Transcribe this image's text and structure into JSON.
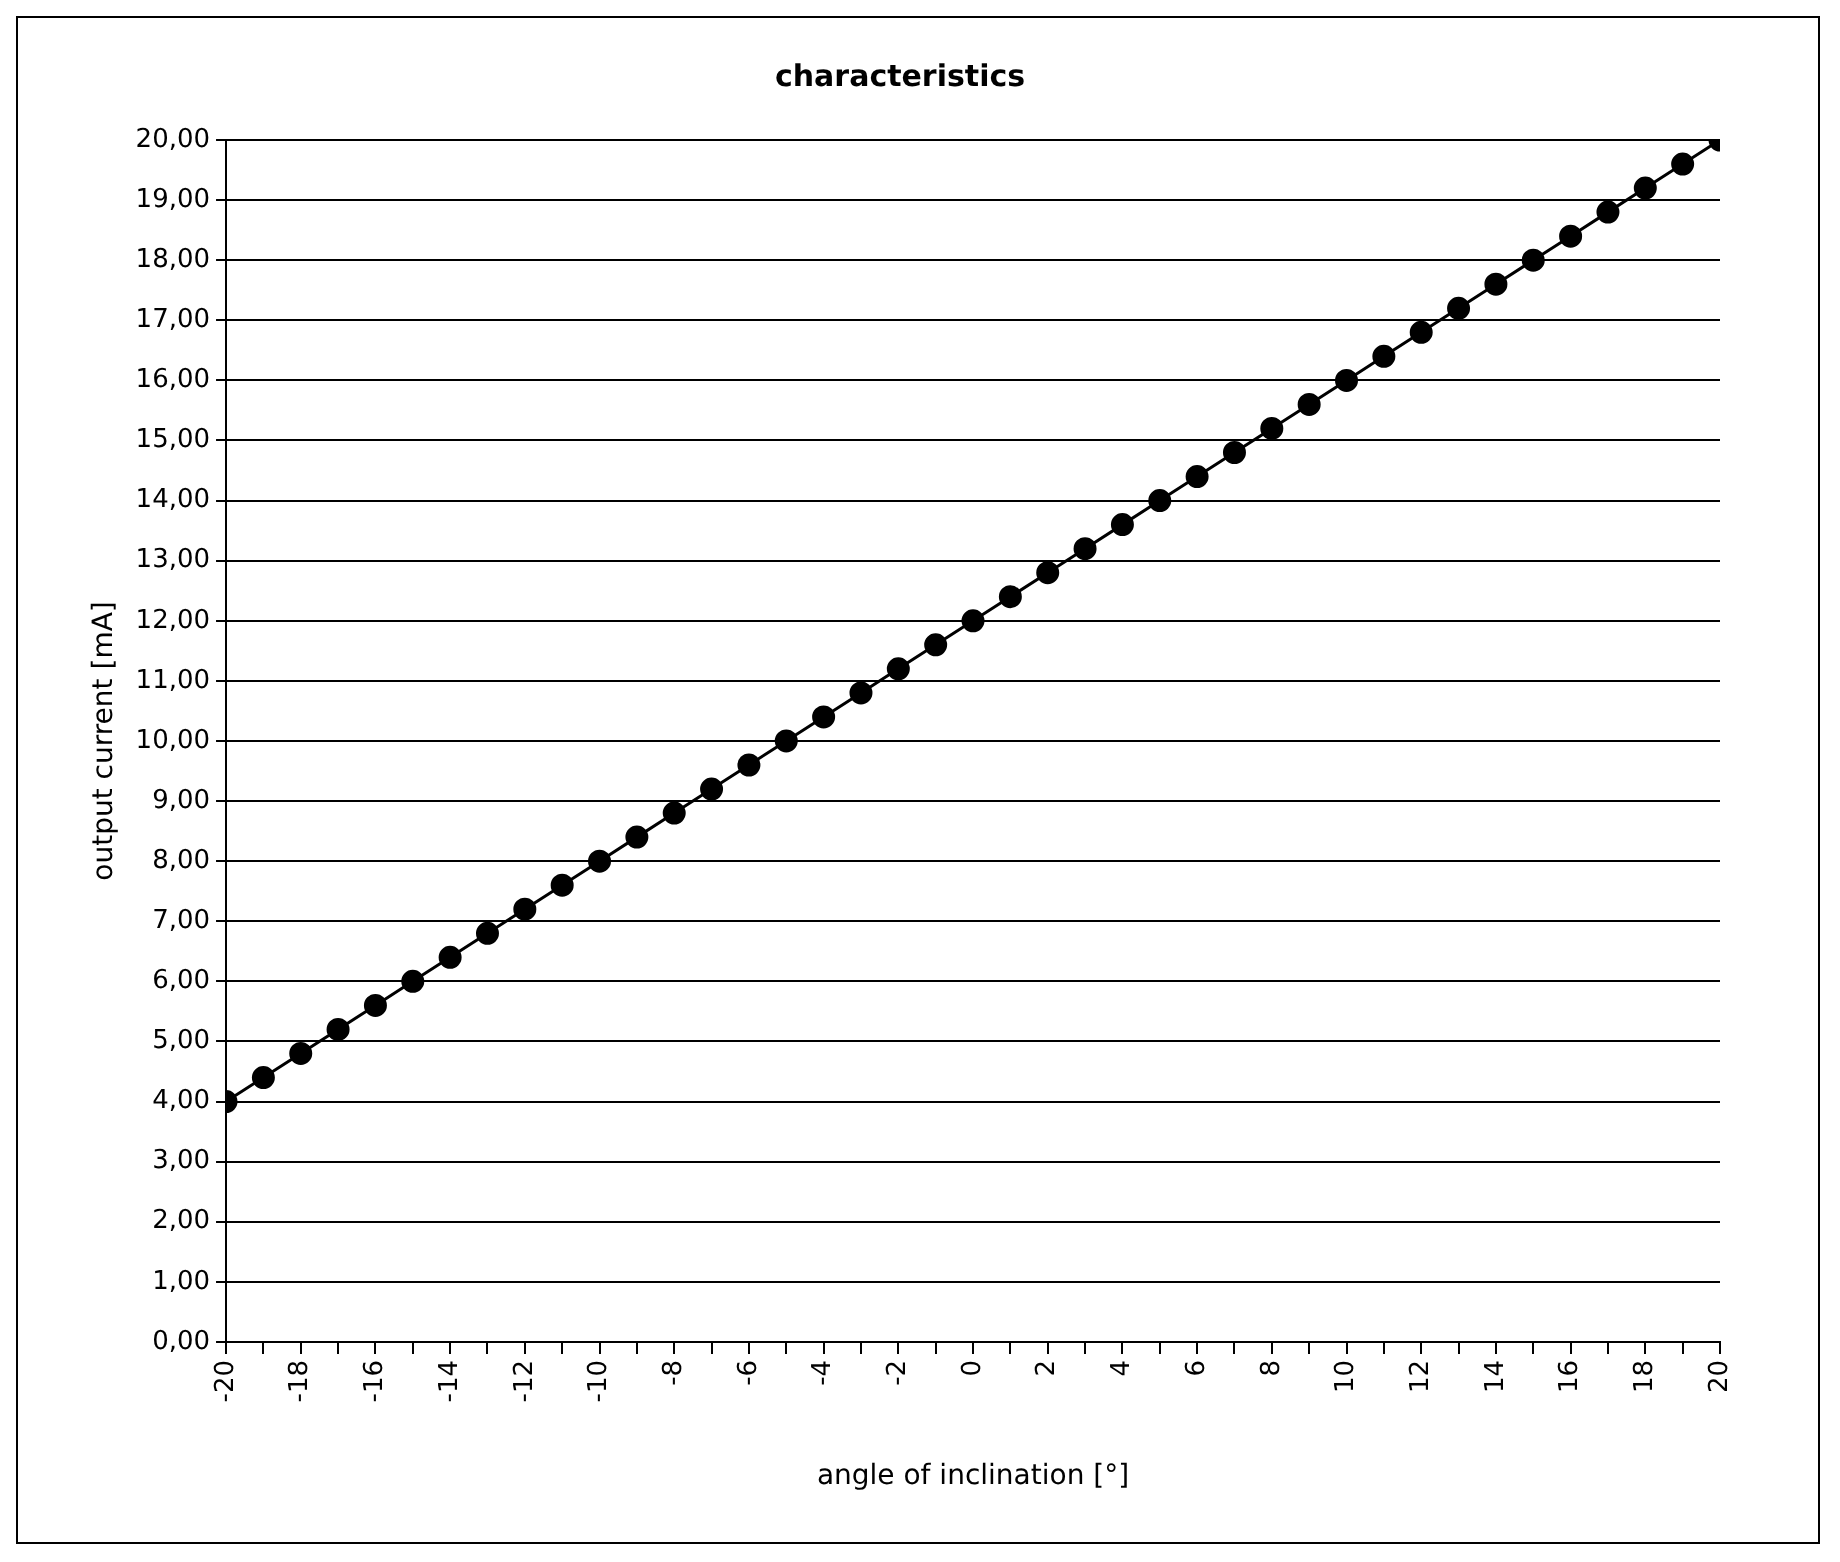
{
  "chart_data": {
    "type": "line",
    "title": "characteristics",
    "xlabel": "angle of inclination [°]",
    "ylabel": "output current [mA]",
    "x": [
      -20,
      -19,
      -18,
      -17,
      -16,
      -15,
      -14,
      -13,
      -12,
      -11,
      -10,
      -9,
      -8,
      -7,
      -6,
      -5,
      -4,
      -3,
      -2,
      -1,
      0,
      1,
      2,
      3,
      4,
      5,
      6,
      7,
      8,
      9,
      10,
      11,
      12,
      13,
      14,
      15,
      16,
      17,
      18,
      19,
      20
    ],
    "series": [
      {
        "color": "#000000",
        "values": [
          4.0,
          4.4,
          4.8,
          5.2,
          5.6,
          6.0,
          6.4,
          6.8,
          7.2,
          7.6,
          8.0,
          8.4,
          8.8,
          9.2,
          9.6,
          10.0,
          10.4,
          10.8,
          11.2,
          11.6,
          12.0,
          12.4,
          12.8,
          13.2,
          13.6,
          14.0,
          14.4,
          14.8,
          15.2,
          15.6,
          16.0,
          16.4,
          16.8,
          17.2,
          17.6,
          18.0,
          18.4,
          18.8,
          19.2,
          19.6,
          20.0
        ]
      }
    ],
    "xlim": [
      -20,
      20
    ],
    "xticks": [
      -20,
      {
        "value": -19,
        "label": null
      },
      -18,
      {
        "value": -17,
        "label": null
      },
      -16,
      {
        "value": -15,
        "label": null
      },
      -14,
      {
        "value": -13,
        "label": null
      },
      -12,
      {
        "value": -11,
        "label": null
      },
      -10,
      {
        "value": -9,
        "label": null
      },
      -8,
      {
        "value": -7,
        "label": null
      },
      -6,
      {
        "value": -5,
        "label": null
      },
      -4,
      {
        "value": -3,
        "label": null
      },
      -2,
      {
        "value": -1,
        "label": null
      },
      0,
      {
        "value": 1,
        "label": null
      },
      2,
      {
        "value": 3,
        "label": null
      },
      4,
      {
        "value": 5,
        "label": null
      },
      6,
      {
        "value": 7,
        "label": null
      },
      8,
      {
        "value": 9,
        "label": null
      },
      10,
      {
        "value": 11,
        "label": null
      },
      12,
      {
        "value": 13,
        "label": null
      },
      14,
      {
        "value": 15,
        "label": null
      },
      16,
      {
        "value": 17,
        "label": null
      },
      18,
      {
        "value": 19,
        "label": null
      },
      20
    ],
    "ylim": [
      0,
      20
    ],
    "yticks": [
      {
        "value": 0,
        "label": "0,00"
      },
      {
        "value": 1,
        "label": "1,00"
      },
      {
        "value": 2,
        "label": "2,00"
      },
      {
        "value": 3,
        "label": "3,00"
      },
      {
        "value": 4,
        "label": "4,00"
      },
      {
        "value": 5,
        "label": "5,00"
      },
      {
        "value": 6,
        "label": "6,00"
      },
      {
        "value": 7,
        "label": "7,00"
      },
      {
        "value": 8,
        "label": "8,00"
      },
      {
        "value": 9,
        "label": "9,00"
      },
      {
        "value": 10,
        "label": "10,00"
      },
      {
        "value": 11,
        "label": "11,00"
      },
      {
        "value": 12,
        "label": "12,00"
      },
      {
        "value": 13,
        "label": "13,00"
      },
      {
        "value": 14,
        "label": "14,00"
      },
      {
        "value": 15,
        "label": "15,00"
      },
      {
        "value": 16,
        "label": "16,00"
      },
      {
        "value": 17,
        "label": "17,00"
      },
      {
        "value": 18,
        "label": "18,00"
      },
      {
        "value": 19,
        "label": "19,00"
      },
      {
        "value": 20,
        "label": "20,00"
      }
    ],
    "grid": "y",
    "marker": "circle",
    "line_style": "solid",
    "legend": false
  }
}
